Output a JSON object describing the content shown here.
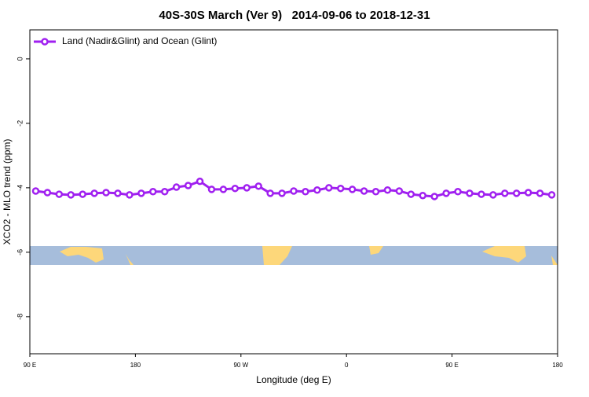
{
  "chart_data": {
    "type": "line",
    "title": "40S-30S March (Ver 9)   2014-09-06 to 2018-12-31",
    "x_label": "Longitude (deg E)",
    "y_label": "XCO2 - MLO trend (ppm)",
    "x": [
      95,
      105,
      115,
      125,
      135,
      145,
      155,
      165,
      175,
      185,
      195,
      205,
      215,
      225,
      235,
      245,
      255,
      265,
      275,
      285,
      295,
      305,
      315,
      325,
      335,
      345,
      355,
      365,
      375,
      385,
      395,
      405,
      415,
      425,
      435,
      445,
      455,
      465,
      475,
      485,
      495,
      505,
      515,
      525,
      535
    ],
    "series": [
      {
        "name": "Land (Nadir&Glint) and Ocean (Glint)",
        "color": "#a020f0",
        "values": [
          -4.1,
          -4.15,
          -4.2,
          -4.22,
          -4.2,
          -4.17,
          -4.15,
          -4.17,
          -4.22,
          -4.17,
          -4.12,
          -4.12,
          -3.98,
          -3.93,
          -3.8,
          -4.05,
          -4.05,
          -4.02,
          -4.0,
          -3.95,
          -4.17,
          -4.17,
          -4.1,
          -4.12,
          -4.07,
          -4.0,
          -4.02,
          -4.05,
          -4.1,
          -4.12,
          -4.07,
          -4.1,
          -4.2,
          -4.24,
          -4.27,
          -4.17,
          -4.12,
          -4.17,
          -4.2,
          -4.22,
          -4.17,
          -4.17,
          -4.15,
          -4.17,
          -4.22
        ]
      }
    ],
    "xlim": [
      90,
      540
    ],
    "xticks": [
      {
        "value": 90,
        "label": "90 E"
      },
      {
        "value": 180,
        "label": "180"
      },
      {
        "value": 270,
        "label": "90 W"
      },
      {
        "value": 360,
        "label": "0"
      },
      {
        "value": 450,
        "label": "90 E"
      },
      {
        "value": 540,
        "label": "180"
      }
    ],
    "ylim": [
      -9.15,
      0.9
    ],
    "yticks": [
      0,
      -2,
      -4,
      -6,
      -8
    ],
    "legend": "top-left"
  }
}
